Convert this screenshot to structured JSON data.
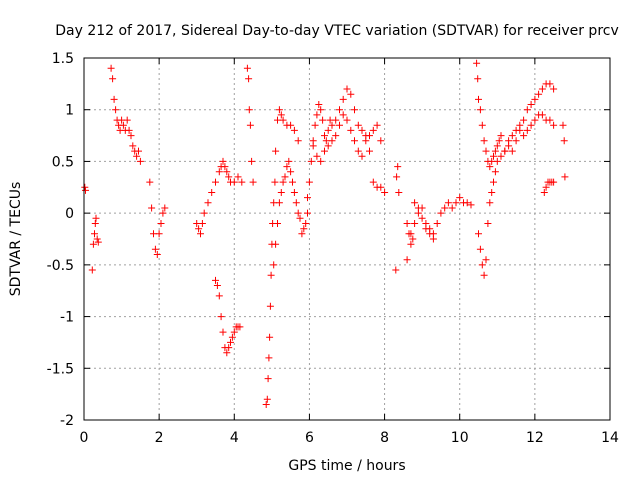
{
  "chart_data": {
    "type": "scatter",
    "title": "Day 212 of 2017, Sidereal Day-to-day VTEC variation (SDTVAR) for receiver prcv",
    "xlabel": "GPS time / hours",
    "ylabel": "SDTVAR / TECUs",
    "xlim": [
      0,
      14
    ],
    "ylim": [
      -2,
      1.5
    ],
    "xticks": [
      0,
      2,
      4,
      6,
      8,
      10,
      12,
      14
    ],
    "yticks": [
      -2,
      -1.5,
      -1,
      -0.5,
      0,
      0.5,
      1,
      1.5
    ],
    "xtick_labels": [
      "0",
      "2",
      "4",
      "6",
      "8",
      "10",
      "12",
      "14"
    ],
    "ytick_labels": [
      "-2",
      "-1.5",
      "-1",
      "-0.5",
      "0",
      "0.5",
      "1",
      "1.5"
    ],
    "grid": true,
    "marker": "+",
    "colors": {
      "series": "#ff0000",
      "grid": "#a0a0a0",
      "axis": "#000000"
    },
    "series": [
      {
        "name": "SDTVAR",
        "x": [
          0.02,
          0.04,
          0.22,
          0.25,
          0.28,
          0.3,
          0.32,
          0.35,
          0.38,
          0.72,
          0.76,
          0.8,
          0.84,
          0.88,
          0.92,
          0.96,
          1.0,
          1.05,
          1.1,
          1.15,
          1.2,
          1.25,
          1.3,
          1.35,
          1.4,
          1.45,
          1.5,
          1.75,
          1.8,
          1.85,
          1.9,
          1.95,
          2.0,
          2.05,
          2.1,
          2.15,
          3.0,
          3.05,
          3.1,
          3.15,
          3.2,
          3.3,
          3.4,
          3.5,
          3.6,
          3.65,
          3.7,
          3.75,
          3.8,
          3.85,
          3.9,
          4.0,
          4.1,
          4.2,
          3.5,
          3.55,
          3.6,
          3.65,
          3.7,
          3.75,
          3.8,
          3.85,
          3.9,
          3.95,
          4.0,
          4.05,
          4.1,
          4.15,
          4.35,
          4.38,
          4.4,
          4.43,
          4.46,
          4.5,
          4.85,
          4.88,
          4.9,
          4.92,
          4.94,
          4.96,
          4.98,
          5.0,
          5.02,
          5.05,
          5.08,
          5.1,
          5.15,
          5.2,
          5.25,
          5.3,
          5.4,
          5.5,
          5.6,
          5.7,
          5.05,
          5.1,
          5.15,
          5.2,
          5.25,
          5.3,
          5.35,
          5.4,
          5.45,
          5.5,
          5.55,
          5.6,
          5.65,
          5.7,
          5.75,
          5.8,
          5.85,
          5.9,
          5.95,
          5.95,
          6.0,
          6.05,
          6.1,
          6.15,
          6.2,
          6.25,
          6.3,
          6.35,
          6.4,
          6.45,
          6.5,
          6.55,
          6.6,
          6.7,
          6.8,
          6.9,
          7.0,
          7.1,
          7.2,
          7.3,
          7.4,
          7.5,
          7.6,
          7.7,
          7.8,
          7.9,
          6.1,
          6.2,
          6.3,
          6.4,
          6.5,
          6.6,
          6.7,
          6.8,
          6.9,
          7.0,
          7.1,
          7.2,
          7.3,
          7.4,
          7.5,
          7.6,
          7.7,
          7.8,
          7.9,
          8.0,
          8.3,
          8.32,
          8.35,
          8.38,
          8.6,
          8.65,
          8.7,
          8.75,
          8.8,
          8.9,
          9.0,
          9.1,
          9.2,
          9.3,
          9.4,
          9.5,
          9.6,
          9.7,
          9.8,
          9.9,
          10.0,
          10.1,
          10.2,
          10.3,
          8.6,
          8.7,
          8.8,
          8.9,
          9.0,
          9.1,
          9.2,
          9.3,
          10.45,
          10.48,
          10.5,
          10.55,
          10.6,
          10.65,
          10.7,
          10.75,
          10.8,
          10.85,
          10.9,
          10.95,
          11.0,
          11.05,
          11.1,
          10.5,
          10.55,
          10.6,
          10.65,
          10.7,
          10.75,
          10.8,
          10.85,
          10.9,
          10.95,
          11.0,
          11.1,
          11.2,
          11.3,
          11.4,
          11.5,
          11.6,
          11.7,
          11.8,
          11.9,
          12.0,
          12.1,
          12.2,
          12.3,
          12.4,
          12.5,
          11.2,
          11.3,
          11.4,
          11.5,
          11.6,
          11.7,
          11.8,
          11.9,
          12.0,
          12.1,
          12.2,
          12.3,
          12.4,
          12.5,
          12.25,
          12.3,
          12.35,
          12.4,
          12.45,
          12.5,
          12.75,
          12.78,
          12.8
        ],
        "y": [
          0.25,
          0.22,
          -0.55,
          -0.3,
          -0.2,
          -0.1,
          -0.05,
          -0.25,
          -0.28,
          1.4,
          1.3,
          1.1,
          1.0,
          0.9,
          0.85,
          0.8,
          0.9,
          0.85,
          0.8,
          0.9,
          0.8,
          0.75,
          0.65,
          0.6,
          0.55,
          0.6,
          0.5,
          0.3,
          0.05,
          -0.2,
          -0.35,
          -0.4,
          -0.2,
          -0.1,
          0.0,
          0.05,
          -0.1,
          -0.15,
          -0.2,
          -0.1,
          0.0,
          0.1,
          0.2,
          0.3,
          0.4,
          0.45,
          0.5,
          0.45,
          0.4,
          0.35,
          0.3,
          0.3,
          0.35,
          0.3,
          -0.65,
          -0.7,
          -0.8,
          -1.0,
          -1.15,
          -1.3,
          -1.35,
          -1.3,
          -1.25,
          -1.2,
          -1.15,
          -1.1,
          -1.1,
          -1.1,
          1.4,
          1.3,
          1.0,
          0.85,
          0.5,
          0.3,
          -1.85,
          -1.8,
          -1.6,
          -1.4,
          -1.2,
          -0.9,
          -0.6,
          -0.3,
          -0.1,
          0.1,
          0.3,
          0.6,
          0.9,
          1.0,
          0.95,
          0.9,
          0.85,
          0.85,
          0.8,
          0.7,
          -0.5,
          -0.3,
          -0.1,
          0.1,
          0.2,
          0.3,
          0.35,
          0.45,
          0.5,
          0.4,
          0.3,
          0.2,
          0.1,
          0.0,
          -0.05,
          -0.2,
          -0.15,
          -0.1,
          0.0,
          0.15,
          0.3,
          0.5,
          0.7,
          0.85,
          0.95,
          1.05,
          1.0,
          0.9,
          0.75,
          0.7,
          0.8,
          0.9,
          0.85,
          0.9,
          1.0,
          1.1,
          1.2,
          1.15,
          1.0,
          0.85,
          0.8,
          0.75,
          0.75,
          0.8,
          0.85,
          0.7,
          0.65,
          0.55,
          0.5,
          0.6,
          0.65,
          0.7,
          0.75,
          0.85,
          0.95,
          0.9,
          0.8,
          0.7,
          0.6,
          0.55,
          0.7,
          0.6,
          0.3,
          0.25,
          0.25,
          0.2,
          -0.55,
          0.35,
          0.45,
          0.2,
          -0.1,
          -0.2,
          -0.3,
          -0.25,
          -0.1,
          0.0,
          0.05,
          -0.1,
          -0.15,
          -0.2,
          -0.1,
          0.0,
          0.05,
          0.1,
          0.05,
          0.1,
          0.15,
          0.1,
          0.1,
          0.08,
          -0.45,
          -0.2,
          0.1,
          0.05,
          -0.05,
          -0.15,
          -0.2,
          -0.25,
          1.45,
          1.3,
          1.1,
          1.0,
          0.85,
          0.7,
          0.6,
          0.5,
          0.45,
          0.5,
          0.55,
          0.6,
          0.65,
          0.7,
          0.75,
          -0.2,
          -0.35,
          -0.5,
          -0.6,
          -0.45,
          -0.1,
          0.1,
          0.2,
          0.3,
          0.4,
          0.5,
          0.55,
          0.6,
          0.7,
          0.75,
          0.8,
          0.85,
          0.9,
          1.0,
          1.05,
          1.1,
          1.15,
          1.2,
          1.25,
          1.25,
          1.2,
          0.6,
          0.65,
          0.6,
          0.7,
          0.8,
          0.75,
          0.8,
          0.85,
          0.9,
          0.95,
          0.95,
          0.9,
          0.9,
          0.85,
          0.2,
          0.25,
          0.3,
          0.3,
          0.3,
          0.3,
          0.85,
          0.7,
          0.35
        ]
      }
    ]
  }
}
